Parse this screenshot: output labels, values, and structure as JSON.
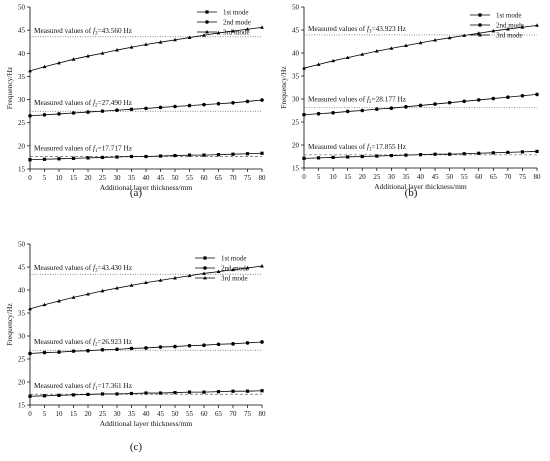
{
  "chart_data": [
    {
      "type": "line",
      "panel_label": "(a)",
      "xlabel": "Additional layer thickness/mm",
      "ylabel": "Frequency/Hz",
      "xlim": [
        0,
        80
      ],
      "ylim": [
        15,
        50
      ],
      "xticks": [
        0,
        5,
        10,
        15,
        20,
        25,
        30,
        35,
        40,
        45,
        50,
        55,
        60,
        65,
        70,
        75,
        80
      ],
      "yticks": [
        15,
        20,
        25,
        30,
        35,
        40,
        45,
        50
      ],
      "legend_position": "top-right",
      "x": [
        0,
        5,
        10,
        15,
        20,
        25,
        30,
        35,
        40,
        45,
        50,
        55,
        60,
        65,
        70,
        75,
        80
      ],
      "series": [
        {
          "name": "1st mode",
          "marker": "square",
          "values": [
            17.0,
            17.1,
            17.2,
            17.3,
            17.4,
            17.5,
            17.6,
            17.7,
            17.7,
            17.8,
            17.9,
            18.0,
            18.0,
            18.1,
            18.2,
            18.3,
            18.4
          ]
        },
        {
          "name": "2nd mode",
          "marker": "circle",
          "values": [
            26.5,
            26.7,
            26.9,
            27.1,
            27.3,
            27.5,
            27.7,
            27.9,
            28.1,
            28.3,
            28.5,
            28.7,
            28.9,
            29.1,
            29.3,
            29.6,
            29.9
          ]
        },
        {
          "name": "3rd mode",
          "marker": "triangle",
          "values": [
            36.2,
            37.1,
            37.9,
            38.7,
            39.4,
            40.0,
            40.7,
            41.3,
            41.9,
            42.4,
            42.9,
            43.4,
            43.9,
            44.4,
            44.8,
            45.2,
            45.6
          ]
        }
      ],
      "measured": [
        {
          "label": "Measured values of ",
          "sym": "f",
          "sub": "1",
          "value": "=17.717 Hz",
          "y": 17.717
        },
        {
          "label": "Measured values of ",
          "sym": "f",
          "sub": "2",
          "value": "=27.490 Hz",
          "y": 27.49
        },
        {
          "label": "Measured values of ",
          "sym": "f",
          "sub": "3",
          "value": "=43.560 Hz",
          "y": 43.56
        }
      ]
    },
    {
      "type": "line",
      "panel_label": "(b)",
      "xlabel": "Additional layer thickness/mm",
      "ylabel": "Frequency/Hz",
      "xlim": [
        0,
        80
      ],
      "ylim": [
        15,
        50
      ],
      "xticks": [
        0,
        5,
        10,
        15,
        20,
        25,
        30,
        35,
        40,
        45,
        50,
        55,
        60,
        65,
        70,
        75,
        80
      ],
      "yticks": [
        15,
        20,
        25,
        30,
        35,
        40,
        45,
        50
      ],
      "legend_position": "top-right",
      "x": [
        0,
        5,
        10,
        15,
        20,
        25,
        30,
        35,
        40,
        45,
        50,
        55,
        60,
        65,
        70,
        75,
        80
      ],
      "series": [
        {
          "name": "1st mode",
          "marker": "square",
          "values": [
            17.1,
            17.2,
            17.3,
            17.4,
            17.5,
            17.6,
            17.7,
            17.8,
            17.9,
            18.0,
            18.0,
            18.1,
            18.2,
            18.3,
            18.4,
            18.5,
            18.6
          ]
        },
        {
          "name": "2nd mode",
          "marker": "circle",
          "values": [
            26.6,
            26.8,
            27.0,
            27.3,
            27.5,
            27.8,
            28.0,
            28.3,
            28.6,
            28.9,
            29.2,
            29.5,
            29.8,
            30.1,
            30.4,
            30.7,
            31.0
          ]
        },
        {
          "name": "3rd mode",
          "marker": "triangle",
          "values": [
            36.7,
            37.5,
            38.3,
            39.0,
            39.7,
            40.4,
            41.0,
            41.6,
            42.2,
            42.8,
            43.3,
            43.8,
            44.3,
            44.8,
            45.2,
            45.6,
            46.0
          ]
        }
      ],
      "measured": [
        {
          "label": "Measured values of ",
          "sym": "f",
          "sub": "1",
          "value": "=17.855 Hz",
          "y": 17.855
        },
        {
          "label": "Measured values of ",
          "sym": "f",
          "sub": "2",
          "value": "=28.177 Hz",
          "y": 28.177
        },
        {
          "label": "Measured values of ",
          "sym": "f",
          "sub": "3",
          "value": "=43.923 Hz",
          "y": 43.923
        }
      ]
    },
    {
      "type": "line",
      "panel_label": "(c)",
      "xlabel": "Additional layer thickness/mm",
      "ylabel": "Frequency/Hz",
      "xlim": [
        0,
        80
      ],
      "ylim": [
        15,
        50
      ],
      "xticks": [
        0,
        5,
        10,
        15,
        20,
        25,
        30,
        35,
        40,
        45,
        50,
        55,
        60,
        65,
        70,
        75,
        80
      ],
      "yticks": [
        15,
        20,
        25,
        30,
        35,
        40,
        45,
        50
      ],
      "legend_position": "top-right",
      "x": [
        0,
        5,
        10,
        15,
        20,
        25,
        30,
        35,
        40,
        45,
        50,
        55,
        60,
        65,
        70,
        75,
        80
      ],
      "series": [
        {
          "name": "1st mode",
          "marker": "square",
          "values": [
            16.9,
            17.0,
            17.1,
            17.2,
            17.3,
            17.4,
            17.4,
            17.5,
            17.6,
            17.6,
            17.7,
            17.8,
            17.8,
            17.9,
            18.0,
            18.0,
            18.1
          ]
        },
        {
          "name": "2nd mode",
          "marker": "circle",
          "values": [
            26.2,
            26.4,
            26.5,
            26.7,
            26.8,
            27.0,
            27.1,
            27.3,
            27.4,
            27.6,
            27.7,
            27.9,
            28.0,
            28.2,
            28.3,
            28.5,
            28.7
          ]
        },
        {
          "name": "3rd mode",
          "marker": "triangle",
          "values": [
            35.9,
            36.8,
            37.6,
            38.4,
            39.1,
            39.8,
            40.4,
            41.0,
            41.6,
            42.1,
            42.6,
            43.1,
            43.6,
            44.0,
            44.4,
            44.8,
            45.2
          ]
        }
      ],
      "measured": [
        {
          "label": "Measured values of ",
          "sym": "f",
          "sub": "1",
          "value": "=17.361 Hz",
          "y": 17.361
        },
        {
          "label": "Measured values of ",
          "sym": "f",
          "sub": "2",
          "value": "=26.923 Hz",
          "y": 26.923
        },
        {
          "label": "Measured values of ",
          "sym": "f",
          "sub": "3",
          "value": "=43.430 Hz",
          "y": 43.43
        }
      ]
    }
  ]
}
